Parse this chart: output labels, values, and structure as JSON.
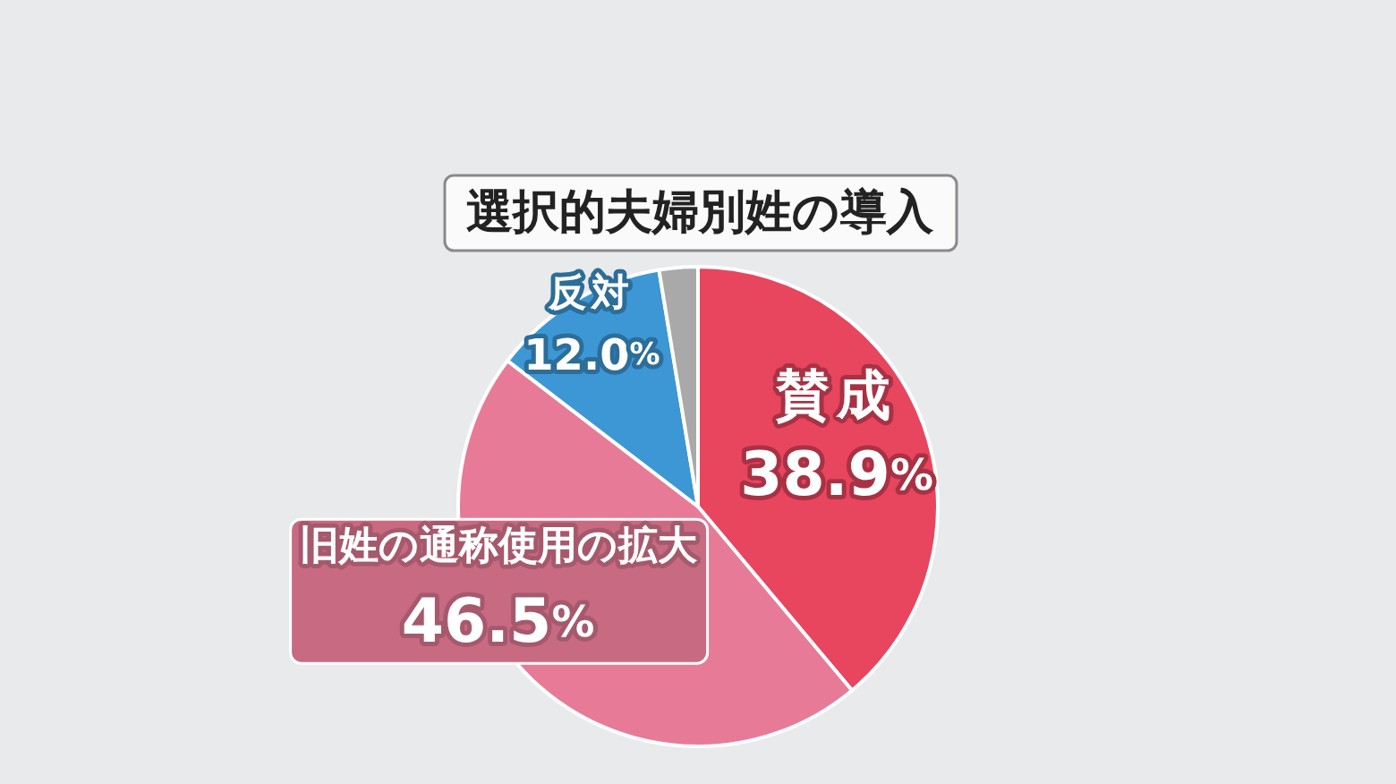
{
  "chart_data": {
    "type": "pie",
    "title": "選択的夫婦別姓の導入",
    "categories": [
      "賛成",
      "旧姓の通称使用の拡大",
      "反対",
      null
    ],
    "values": [
      38.9,
      46.5,
      12.0,
      2.6
    ],
    "colors": [
      "#e8455f",
      "#e77b97",
      "#3d97d5",
      "#a9a9a9"
    ],
    "value_labels": [
      "38.9%",
      "46.5%",
      "12.0%",
      null
    ]
  }
}
